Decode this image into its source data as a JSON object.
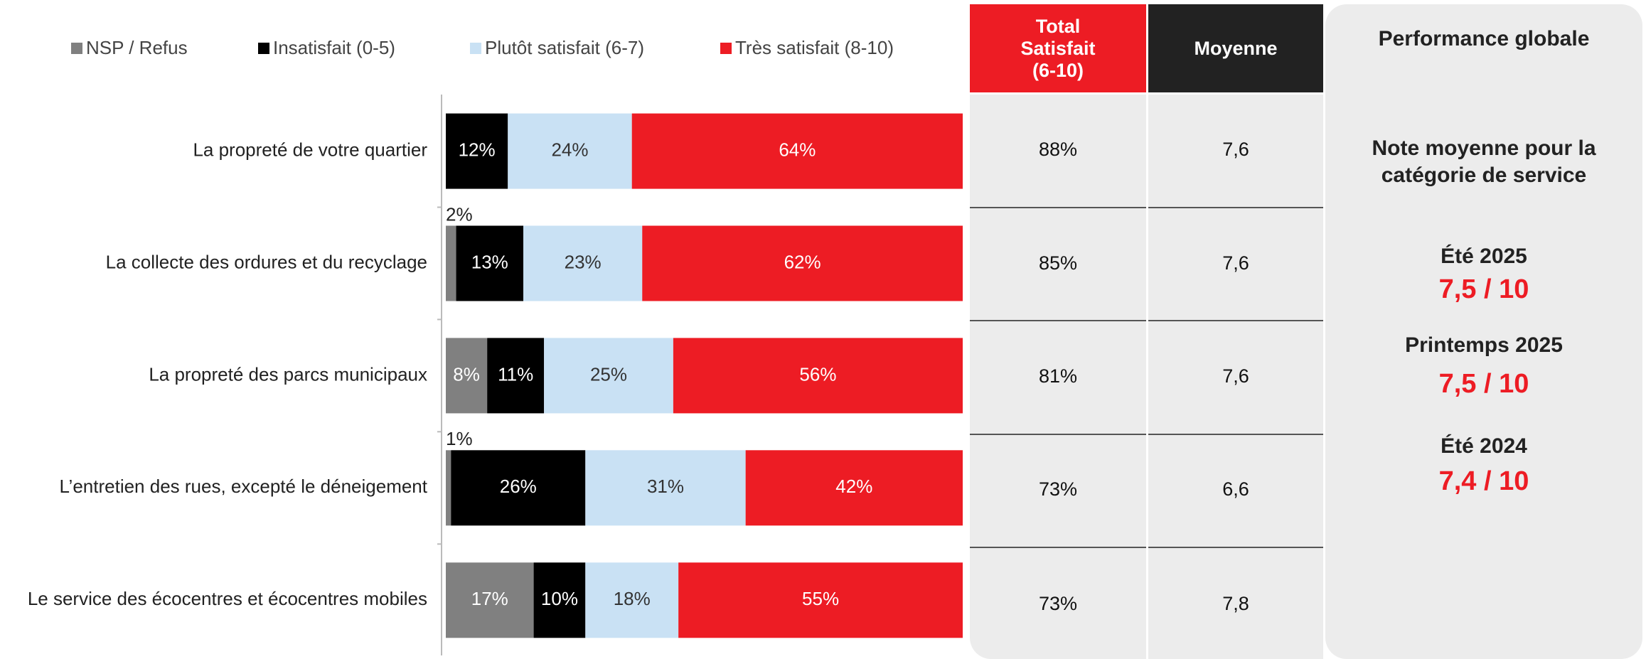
{
  "chart_data": {
    "type": "stacked-bar-horizontal",
    "categories": [
      "La propreté de votre quartier",
      "La collecte des ordures et du recyclage",
      "La propreté des parcs municipaux",
      "L’entretien des rues, excepté le déneigement",
      "Le service des écocentres et écocentres mobiles"
    ],
    "series": [
      {
        "name": "NSP / Refus",
        "color": "#808080",
        "values": [
          0,
          2,
          8,
          1,
          17
        ],
        "value_labels": [
          null,
          "2%",
          "8%",
          "1%",
          "17%"
        ]
      },
      {
        "name": "Insatisfait (0-5)",
        "color": "#000000",
        "values": [
          12,
          13,
          11,
          26,
          10
        ],
        "value_labels": [
          "12%",
          "13%",
          "11%",
          "26%",
          "10%"
        ]
      },
      {
        "name": "Plutôt satisfait (6-7)",
        "color": "#c9e1f4",
        "values": [
          24,
          23,
          25,
          31,
          18
        ],
        "value_labels": [
          "24%",
          "23%",
          "25%",
          "31%",
          "18%"
        ]
      },
      {
        "name": "Très satisfait (8-10)",
        "color": "#ed1c24",
        "values": [
          64,
          62,
          56,
          42,
          55
        ],
        "value_labels": [
          "64%",
          "62%",
          "56%",
          "42%",
          "55%"
        ]
      }
    ]
  },
  "table": {
    "headers": [
      [
        "Total",
        "Satisfait",
        "(6-10)"
      ],
      [
        "Moyenne"
      ]
    ],
    "rows": [
      [
        "88%",
        "7,6"
      ],
      [
        "85%",
        "7,6"
      ],
      [
        "81%",
        "7,6"
      ],
      [
        "73%",
        "6,6"
      ],
      [
        "73%",
        "7,8"
      ]
    ]
  },
  "panel": {
    "title": "Performance globale",
    "subtitle": [
      "Note moyenne pour la",
      "catégorie de service"
    ],
    "periods": [
      {
        "label": "Été 2025",
        "score": "7,5 / 10"
      },
      {
        "label": "Printemps 2025",
        "score": "7,5 / 10"
      },
      {
        "label": "Été 2024",
        "score": "7,4 / 10"
      }
    ]
  }
}
